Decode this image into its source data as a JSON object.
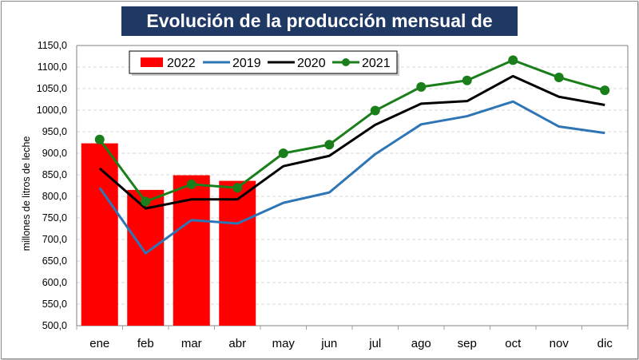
{
  "chart_data": {
    "type": "bar+line",
    "title": "Evolución de la producción mensual de leche",
    "ylabel": "millones de litros de leche",
    "xlabel": "",
    "ylim": [
      500,
      1150
    ],
    "ytick_step": 50,
    "ytick_labels": [
      "500,0",
      "550,0",
      "600,0",
      "650,0",
      "700,0",
      "750,0",
      "800,0",
      "850,0",
      "900,0",
      "950,0",
      "1000,0",
      "1050,0",
      "1100,0",
      "1150,0"
    ],
    "grid": "horizontal dashed",
    "legend_position": "top-left",
    "categories": [
      "ene",
      "feb",
      "mar",
      "abr",
      "may",
      "jun",
      "jul",
      "ago",
      "sep",
      "oct",
      "nov",
      "dic"
    ],
    "series": [
      {
        "name": "2022",
        "type": "bar",
        "color": "#ff0000",
        "values": [
          923,
          815,
          849,
          836,
          null,
          null,
          null,
          null,
          null,
          null,
          null,
          null
        ]
      },
      {
        "name": "2019",
        "type": "line",
        "color": "#2e75b6",
        "values": [
          820,
          668,
          745,
          737,
          785,
          809,
          898,
          967,
          986,
          1020,
          962,
          947
        ]
      },
      {
        "name": "2020",
        "type": "line",
        "color": "#000000",
        "values": [
          865,
          772,
          793,
          793,
          870,
          894,
          966,
          1015,
          1021,
          1079,
          1031,
          1012
        ]
      },
      {
        "name": "2021",
        "type": "line",
        "color": "#1a7f1a",
        "marker": "circle",
        "values": [
          932,
          788,
          828,
          820,
          900,
          920,
          999,
          1054,
          1069,
          1116,
          1076,
          1046
        ]
      }
    ]
  }
}
